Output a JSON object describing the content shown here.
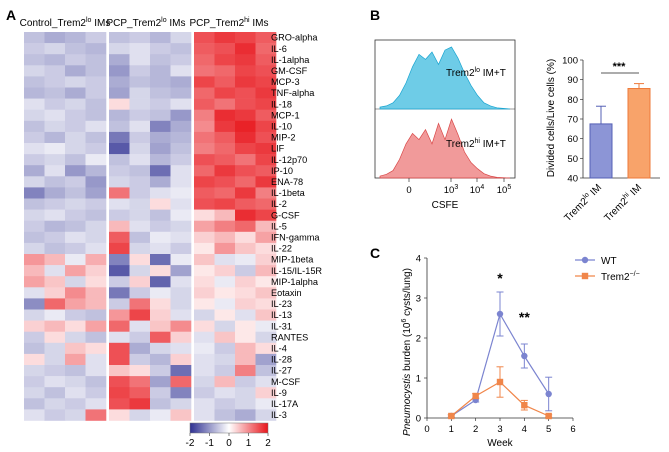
{
  "panels": {
    "A": "A",
    "B": "B",
    "C": "C"
  },
  "colors": {
    "neg": "#2e3092",
    "zero": "#ffffff",
    "pos": "#e8161c",
    "lo_fill": "#5ec6e4",
    "lo_line": "#1aa5d1",
    "hi_fill": "#ef8f8f",
    "hi_line": "#d94848",
    "bar_lo": "#8c95d6",
    "bar_lo_edge": "#5560b5",
    "bar_hi": "#f8a36a",
    "bar_hi_edge": "#ee7a3a",
    "wt": "#7b84d0",
    "ko": "#f0864a"
  },
  "chart_data": [
    {
      "id": "heatmap",
      "type": "heatmap",
      "groups": [
        {
          "prefix": "Control_Trem2",
          "sup": "lo",
          "suffix": " IMs"
        },
        {
          "prefix": "PCP_Trem2",
          "sup": "lo",
          "suffix": " IMs"
        },
        {
          "prefix": "PCP_Trem2",
          "sup": "hi",
          "suffix": " IMs"
        }
      ],
      "rows": [
        "GRO-alpha",
        "IL-6",
        "IL-1alpha",
        "GM-CSF",
        "MCP-3",
        "TNF-alpha",
        "IL-18",
        "MCP-1",
        "IL-10",
        "MIP-2",
        "LIF",
        "IL-12p70",
        "IP-10",
        "ENA-78",
        "IL-1beta",
        "IL-2",
        "G-CSF",
        "IL-5",
        "IFN-gamma",
        "IL-22",
        "MIP-1beta",
        "IL-15/IL-15R",
        "MIP-1alpha",
        "Eotaxin",
        "IL-23",
        "IL-13",
        "IL-31",
        "RANTES",
        "IL-4",
        "IL-28",
        "IL-27",
        "M-CSF",
        "IL-9",
        "IL-17A",
        "IL-3"
      ],
      "values": [
        [
          -0.6,
          -0.8,
          -0.7,
          -0.5,
          -0.6,
          -0.5,
          -0.7,
          -0.4,
          1.5,
          1.7,
          1.6,
          1.4
        ],
        [
          -0.5,
          -0.4,
          -0.6,
          -0.7,
          -0.4,
          -0.3,
          -0.5,
          -0.6,
          1.4,
          1.5,
          1.8,
          1.3
        ],
        [
          -0.6,
          -0.7,
          -0.5,
          -0.6,
          -0.8,
          -0.3,
          -0.6,
          -0.5,
          1.3,
          1.6,
          1.7,
          1.4
        ],
        [
          -0.4,
          -0.5,
          -0.8,
          -0.6,
          -1.0,
          -0.5,
          -0.7,
          -0.3,
          1.2,
          1.3,
          1.6,
          1.5
        ],
        [
          -0.6,
          -0.5,
          -0.4,
          -0.5,
          -0.8,
          -0.6,
          -0.7,
          -0.8,
          1.6,
          1.4,
          1.7,
          1.6
        ],
        [
          -0.7,
          -0.6,
          -0.8,
          -0.5,
          -0.9,
          -0.4,
          -0.6,
          -0.7,
          1.3,
          1.6,
          1.5,
          1.7
        ],
        [
          -0.3,
          -0.5,
          -0.4,
          -0.6,
          0.3,
          -0.4,
          -0.5,
          -0.3,
          1.4,
          1.2,
          1.5,
          1.6
        ],
        [
          -0.4,
          -0.3,
          -0.5,
          -0.6,
          -0.7,
          -0.5,
          -0.6,
          -1.0,
          1.1,
          1.8,
          1.7,
          1.4
        ],
        [
          -0.6,
          -0.4,
          -0.5,
          -0.3,
          -0.6,
          -0.3,
          -1.2,
          -0.8,
          1.0,
          1.7,
          1.9,
          1.6
        ],
        [
          -0.5,
          -0.7,
          -0.4,
          -0.6,
          -1.3,
          -0.5,
          -0.8,
          -0.7,
          1.2,
          1.4,
          1.8,
          1.5
        ],
        [
          -0.3,
          -0.2,
          -0.4,
          -0.5,
          -1.6,
          -0.4,
          -0.9,
          -0.6,
          1.1,
          1.3,
          1.6,
          1.7
        ],
        [
          -0.5,
          -0.4,
          -0.6,
          -0.2,
          -0.6,
          -0.3,
          -0.7,
          -0.5,
          1.5,
          1.4,
          1.2,
          1.6
        ],
        [
          -0.8,
          -0.3,
          -1.0,
          -0.7,
          -0.5,
          -0.6,
          -1.4,
          -0.3,
          1.3,
          1.7,
          1.5,
          1.4
        ],
        [
          -0.4,
          -0.6,
          -0.5,
          -1.0,
          -0.4,
          -0.5,
          -0.8,
          -0.3,
          1.6,
          1.5,
          1.3,
          1.7
        ],
        [
          -1.2,
          -0.8,
          -0.6,
          -0.9,
          1.2,
          -0.5,
          -0.3,
          -0.2,
          1.4,
          1.3,
          1.7,
          1.1
        ],
        [
          -0.6,
          -0.5,
          -0.4,
          -0.5,
          -0.3,
          -0.4,
          0.3,
          -0.3,
          1.5,
          1.6,
          1.4,
          1.3
        ],
        [
          -0.4,
          -0.3,
          -0.5,
          -0.6,
          -0.5,
          -0.4,
          -0.6,
          -0.2,
          0.3,
          0.6,
          1.8,
          1.6
        ],
        [
          -0.5,
          -0.7,
          -0.6,
          -0.4,
          0.6,
          -0.3,
          -0.5,
          -0.4,
          0.8,
          1.1,
          1.3,
          0.6
        ],
        [
          -0.6,
          -0.5,
          -0.3,
          -0.4,
          1.4,
          -0.6,
          -0.2,
          -0.3,
          0.4,
          0.6,
          0.3,
          0.8
        ],
        [
          -0.4,
          -0.6,
          -0.5,
          -0.3,
          1.6,
          -0.4,
          -0.3,
          -0.5,
          0.2,
          0.9,
          0.5,
          0.3
        ],
        [
          0.9,
          0.6,
          -0.2,
          0.7,
          -1.2,
          0.3,
          -1.4,
          -0.2,
          0.5,
          -0.3,
          -0.2,
          0.4
        ],
        [
          0.6,
          -0.3,
          0.8,
          0.4,
          -1.6,
          -0.4,
          0.3,
          -0.9,
          0.2,
          0.4,
          -0.5,
          0.6
        ],
        [
          0.8,
          0.5,
          -0.4,
          0.3,
          -0.5,
          0.4,
          -1.5,
          -0.3,
          0.3,
          -0.2,
          0.4,
          0.2
        ],
        [
          -0.3,
          0.4,
          1.0,
          0.6,
          -1.3,
          -0.5,
          -0.2,
          -0.4,
          0.4,
          0.2,
          0.3,
          0.5
        ],
        [
          -1.1,
          1.3,
          0.8,
          0.6,
          -0.5,
          1.2,
          0.3,
          -0.4,
          0.2,
          -0.2,
          0.4,
          0.3
        ],
        [
          -0.4,
          -0.2,
          -0.5,
          -0.6,
          0.9,
          1.6,
          0.4,
          -0.3,
          -0.4,
          0.2,
          -0.3,
          0.5
        ],
        [
          0.4,
          0.6,
          0.3,
          0.8,
          1.3,
          -0.3,
          0.5,
          1.0,
          0.3,
          -0.4,
          0.2,
          -0.2
        ],
        [
          -0.5,
          0.3,
          -0.4,
          -0.6,
          -0.3,
          -0.5,
          1.4,
          0.4,
          -0.3,
          0.5,
          0.2,
          -0.4
        ],
        [
          -0.6,
          -0.4,
          0.5,
          0.3,
          1.5,
          -0.8,
          -0.4,
          -0.3,
          -0.2,
          -0.5,
          0.6,
          0.3
        ],
        [
          0.3,
          -0.4,
          0.8,
          -0.3,
          1.5,
          -0.5,
          -0.7,
          0.4,
          -0.3,
          -0.4,
          0.6,
          -0.9
        ],
        [
          -0.4,
          -0.5,
          -0.6,
          -0.3,
          0.5,
          0.3,
          -0.5,
          -1.4,
          -0.3,
          -0.5,
          1.1,
          -0.6
        ],
        [
          -0.5,
          -0.3,
          -0.4,
          -0.6,
          1.5,
          1.2,
          -0.9,
          1.3,
          -0.4,
          0.6,
          -0.5,
          -0.3
        ],
        [
          -0.4,
          -0.6,
          -0.3,
          -0.5,
          1.6,
          1.4,
          -0.5,
          -1.2,
          -0.5,
          -0.3,
          -0.4,
          0.4
        ],
        [
          -0.6,
          -0.4,
          -0.5,
          -0.3,
          1.5,
          1.7,
          -0.6,
          -0.4,
          -0.3,
          -0.5,
          -0.4,
          -0.2
        ],
        [
          -0.3,
          -0.5,
          -0.4,
          1.2,
          0.3,
          -0.4,
          -0.2,
          0.5,
          -0.3,
          -0.6,
          -0.8,
          -0.4
        ]
      ],
      "colorbar": {
        "min": -2,
        "max": 2,
        "ticks": [
          "-2",
          "-1",
          "0",
          "1",
          "2"
        ]
      }
    },
    {
      "id": "flow-histogram",
      "type": "area",
      "xlabel": "CSFE",
      "xticks": [
        {
          "base": "0",
          "exp": ""
        },
        {
          "base": "10",
          "exp": "3"
        },
        {
          "base": "10",
          "exp": "4"
        },
        {
          "base": "10",
          "exp": "5"
        }
      ],
      "series": [
        {
          "name_prefix": "Trem2",
          "name_sup": "lo",
          "name_suffix": " IM+T",
          "x": [
            0.0,
            0.05,
            0.1,
            0.15,
            0.2,
            0.25,
            0.3,
            0.35,
            0.4,
            0.45,
            0.5,
            0.55,
            0.6,
            0.65,
            0.7,
            0.75,
            0.8,
            0.85,
            0.9,
            1.0
          ],
          "y": [
            0.03,
            0.05,
            0.1,
            0.22,
            0.42,
            0.68,
            0.88,
            0.8,
            0.92,
            0.72,
            0.95,
            1.0,
            0.82,
            0.58,
            0.38,
            0.22,
            0.1,
            0.05,
            0.02,
            0.0
          ]
        },
        {
          "name_prefix": "Trem2",
          "name_sup": "hi",
          "name_suffix": " IM+T",
          "x": [
            0.0,
            0.05,
            0.1,
            0.15,
            0.2,
            0.25,
            0.3,
            0.35,
            0.4,
            0.45,
            0.5,
            0.55,
            0.6,
            0.65,
            0.7,
            0.75,
            0.8,
            0.85,
            0.9,
            1.0
          ],
          "y": [
            0.03,
            0.06,
            0.12,
            0.3,
            0.55,
            0.72,
            0.62,
            0.78,
            0.55,
            0.88,
            0.62,
            0.95,
            0.7,
            0.42,
            0.25,
            0.15,
            0.07,
            0.03,
            0.01,
            0.0
          ]
        }
      ]
    },
    {
      "id": "divided-cells-bar",
      "type": "bar",
      "ylabel": "Divided cells/Live cells (%)",
      "ylim": [
        40,
        100
      ],
      "yticks": [
        40,
        50,
        60,
        70,
        80,
        90,
        100
      ],
      "categories": [
        {
          "prefix": "Trem2",
          "sup": "lo",
          "suffix": " IM"
        },
        {
          "prefix": "Trem2",
          "sup": "hi",
          "suffix": " IM"
        }
      ],
      "values": [
        67.5,
        85.5
      ],
      "errors": [
        9,
        2.5
      ],
      "significance": "***"
    },
    {
      "id": "burden-line",
      "type": "line",
      "title": "",
      "xlabel": "Week",
      "ylabel_italic": "Pneumocystis",
      "ylabel_rest": " burden (10",
      "ylabel_sup": "6",
      "ylabel_end": " cysts/lung)",
      "xlim": [
        0,
        6
      ],
      "ylim": [
        0,
        4
      ],
      "xticks": [
        0,
        1,
        2,
        3,
        4,
        5,
        6
      ],
      "yticks": [
        0,
        1,
        2,
        3,
        4
      ],
      "x": [
        1,
        2,
        3,
        4,
        5
      ],
      "series": [
        {
          "name": "WT",
          "values": [
            0.05,
            0.45,
            2.6,
            1.55,
            0.6
          ],
          "errors": [
            0.03,
            0.05,
            0.55,
            0.3,
            0.42
          ]
        },
        {
          "name_prefix": "Trem2",
          "name_sup": "−/−",
          "values": [
            0.05,
            0.55,
            0.9,
            0.32,
            0.05
          ],
          "errors": [
            0.03,
            0.06,
            0.38,
            0.12,
            0.03
          ]
        }
      ],
      "annotations": [
        {
          "x": 3,
          "text": "*"
        },
        {
          "x": 4,
          "text": "**"
        }
      ]
    }
  ]
}
